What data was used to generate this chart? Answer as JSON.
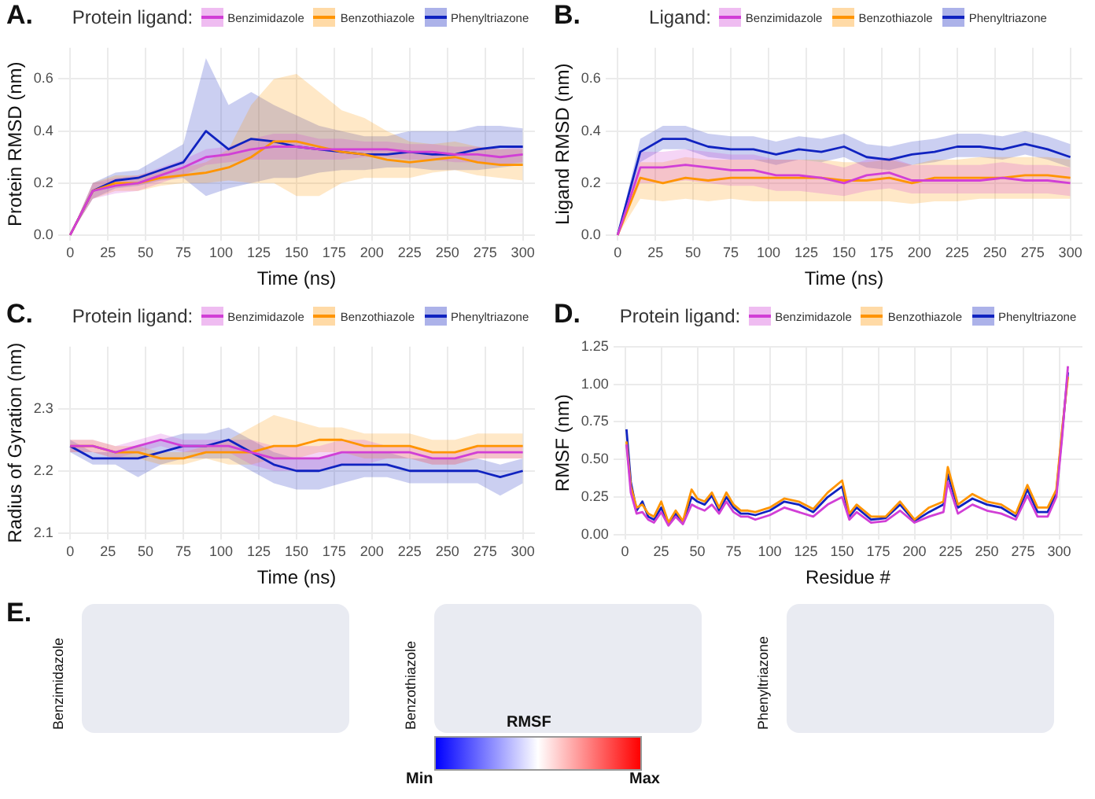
{
  "chart_data": [
    {
      "type": "line",
      "title": "A.",
      "legend_title": "Protein ligand:",
      "legend": "top",
      "xlabel": "Time (ns)",
      "ylabel": "Protein RMSD (nm)",
      "grid": true,
      "marker": "none",
      "line_style": "solid",
      "x": [
        0,
        15,
        30,
        45,
        60,
        75,
        90,
        105,
        120,
        135,
        150,
        165,
        180,
        195,
        210,
        225,
        240,
        255,
        270,
        285,
        300
      ],
      "xlim": [
        -8,
        308
      ],
      "xticks": [
        0,
        25,
        50,
        75,
        100,
        125,
        150,
        175,
        200,
        225,
        250,
        275,
        300
      ],
      "ylim": [
        -0.02,
        0.72
      ],
      "yticks": [
        {
          "value": 0,
          "label": "0.0"
        },
        {
          "value": 0.2,
          "label": "0.2"
        },
        {
          "value": 0.4,
          "label": "0.4"
        },
        {
          "value": 0.6,
          "label": "0.6"
        }
      ],
      "series": [
        {
          "name": "Benzimidazole",
          "color": "#d13fd6",
          "values": [
            0,
            0.17,
            0.19,
            0.2,
            0.23,
            0.26,
            0.3,
            0.31,
            0.33,
            0.34,
            0.34,
            0.33,
            0.33,
            0.33,
            0.33,
            0.32,
            0.32,
            0.31,
            0.31,
            0.3,
            0.31
          ],
          "lower": [
            0,
            0.14,
            0.16,
            0.17,
            0.2,
            0.23,
            0.27,
            0.28,
            0.29,
            0.29,
            0.29,
            0.29,
            0.29,
            0.3,
            0.3,
            0.29,
            0.29,
            0.28,
            0.28,
            0.27,
            0.28
          ],
          "upper": [
            0,
            0.2,
            0.22,
            0.23,
            0.26,
            0.29,
            0.33,
            0.34,
            0.37,
            0.39,
            0.39,
            0.37,
            0.37,
            0.36,
            0.36,
            0.35,
            0.35,
            0.34,
            0.34,
            0.33,
            0.34
          ]
        },
        {
          "name": "Benzothiazole",
          "color": "#ff9400",
          "values": [
            0,
            0.17,
            0.2,
            0.2,
            0.22,
            0.23,
            0.24,
            0.26,
            0.3,
            0.36,
            0.36,
            0.34,
            0.32,
            0.31,
            0.29,
            0.28,
            0.29,
            0.3,
            0.28,
            0.27,
            0.27
          ],
          "lower": [
            0,
            0.14,
            0.17,
            0.17,
            0.19,
            0.2,
            0.2,
            0.21,
            0.2,
            0.2,
            0.15,
            0.15,
            0.2,
            0.22,
            0.22,
            0.22,
            0.24,
            0.25,
            0.23,
            0.22,
            0.21
          ],
          "upper": [
            0,
            0.2,
            0.23,
            0.23,
            0.25,
            0.26,
            0.28,
            0.33,
            0.5,
            0.6,
            0.62,
            0.55,
            0.48,
            0.45,
            0.4,
            0.36,
            0.35,
            0.36,
            0.34,
            0.33,
            0.33
          ]
        },
        {
          "name": "Phenyltriazone",
          "color": "#1023c0",
          "values": [
            0,
            0.17,
            0.21,
            0.22,
            0.25,
            0.28,
            0.4,
            0.33,
            0.37,
            0.36,
            0.34,
            0.33,
            0.32,
            0.31,
            0.31,
            0.32,
            0.31,
            0.31,
            0.33,
            0.34,
            0.34
          ],
          "lower": [
            0,
            0.14,
            0.18,
            0.19,
            0.21,
            0.22,
            0.15,
            0.18,
            0.2,
            0.22,
            0.22,
            0.24,
            0.25,
            0.25,
            0.26,
            0.26,
            0.25,
            0.25,
            0.25,
            0.26,
            0.27
          ],
          "upper": [
            0,
            0.2,
            0.24,
            0.25,
            0.3,
            0.35,
            0.68,
            0.5,
            0.55,
            0.5,
            0.46,
            0.42,
            0.4,
            0.38,
            0.38,
            0.4,
            0.4,
            0.4,
            0.42,
            0.42,
            0.41
          ]
        }
      ]
    },
    {
      "type": "line",
      "title": "B.",
      "legend_title": "Ligand:",
      "legend": "top",
      "xlabel": "Time (ns)",
      "ylabel": "Ligand RMSD (nm)",
      "grid": true,
      "marker": "none",
      "line_style": "solid",
      "x": [
        0,
        15,
        30,
        45,
        60,
        75,
        90,
        105,
        120,
        135,
        150,
        165,
        180,
        195,
        210,
        225,
        240,
        255,
        270,
        285,
        300
      ],
      "xlim": [
        -8,
        308
      ],
      "xticks": [
        0,
        25,
        50,
        75,
        100,
        125,
        150,
        175,
        200,
        225,
        250,
        275,
        300
      ],
      "ylim": [
        -0.02,
        0.72
      ],
      "yticks": [
        {
          "value": 0,
          "label": "0.0"
        },
        {
          "value": 0.2,
          "label": "0.2"
        },
        {
          "value": 0.4,
          "label": "0.4"
        },
        {
          "value": 0.6,
          "label": "0.6"
        }
      ],
      "series": [
        {
          "name": "Benzimidazole",
          "color": "#d13fd6",
          "values": [
            0,
            0.26,
            0.26,
            0.27,
            0.26,
            0.25,
            0.25,
            0.23,
            0.23,
            0.22,
            0.2,
            0.23,
            0.24,
            0.21,
            0.21,
            0.21,
            0.21,
            0.22,
            0.21,
            0.21,
            0.2
          ],
          "lower": [
            0,
            0.2,
            0.2,
            0.21,
            0.2,
            0.19,
            0.19,
            0.17,
            0.17,
            0.16,
            0.15,
            0.17,
            0.18,
            0.16,
            0.16,
            0.16,
            0.16,
            0.16,
            0.16,
            0.16,
            0.15
          ],
          "upper": [
            0,
            0.32,
            0.32,
            0.33,
            0.32,
            0.31,
            0.31,
            0.29,
            0.29,
            0.28,
            0.26,
            0.29,
            0.3,
            0.27,
            0.27,
            0.27,
            0.27,
            0.28,
            0.27,
            0.27,
            0.26
          ]
        },
        {
          "name": "Benzothiazole",
          "color": "#ff9400",
          "values": [
            0,
            0.22,
            0.2,
            0.22,
            0.21,
            0.22,
            0.22,
            0.22,
            0.22,
            0.22,
            0.21,
            0.21,
            0.22,
            0.2,
            0.22,
            0.22,
            0.22,
            0.22,
            0.23,
            0.23,
            0.22
          ],
          "lower": [
            0,
            0.14,
            0.13,
            0.14,
            0.13,
            0.14,
            0.13,
            0.13,
            0.13,
            0.13,
            0.13,
            0.13,
            0.13,
            0.12,
            0.13,
            0.13,
            0.14,
            0.14,
            0.14,
            0.14,
            0.14
          ],
          "upper": [
            0,
            0.28,
            0.28,
            0.3,
            0.29,
            0.29,
            0.29,
            0.29,
            0.29,
            0.29,
            0.28,
            0.28,
            0.29,
            0.27,
            0.29,
            0.29,
            0.3,
            0.3,
            0.3,
            0.3,
            0.29
          ]
        },
        {
          "name": "Phenyltriazone",
          "color": "#1023c0",
          "values": [
            0,
            0.32,
            0.37,
            0.37,
            0.34,
            0.33,
            0.33,
            0.31,
            0.33,
            0.32,
            0.34,
            0.3,
            0.29,
            0.31,
            0.32,
            0.34,
            0.34,
            0.33,
            0.35,
            0.33,
            0.3
          ],
          "lower": [
            0,
            0.28,
            0.33,
            0.33,
            0.3,
            0.29,
            0.29,
            0.27,
            0.29,
            0.28,
            0.3,
            0.26,
            0.25,
            0.27,
            0.28,
            0.3,
            0.3,
            0.29,
            0.31,
            0.29,
            0.26
          ],
          "upper": [
            0,
            0.37,
            0.42,
            0.42,
            0.39,
            0.38,
            0.38,
            0.36,
            0.38,
            0.37,
            0.39,
            0.35,
            0.34,
            0.36,
            0.37,
            0.39,
            0.39,
            0.38,
            0.4,
            0.38,
            0.35
          ]
        }
      ]
    },
    {
      "type": "line",
      "title": "C.",
      "legend_title": "Protein ligand:",
      "legend": "top",
      "xlabel": "Time (ns)",
      "ylabel": "Radius of Gyration (nm)",
      "grid": true,
      "marker": "none",
      "line_style": "solid",
      "x": [
        0,
        15,
        30,
        45,
        60,
        75,
        90,
        105,
        120,
        135,
        150,
        165,
        180,
        195,
        210,
        225,
        240,
        255,
        270,
        285,
        300
      ],
      "xlim": [
        -8,
        308
      ],
      "xticks": [
        0,
        25,
        50,
        75,
        100,
        125,
        150,
        175,
        200,
        225,
        250,
        275,
        300
      ],
      "ylim": [
        2.09,
        2.4
      ],
      "yticks": [
        2.1,
        2.2,
        2.3
      ],
      "series": [
        {
          "name": "Benzimidazole",
          "color": "#d13fd6",
          "values": [
            2.24,
            2.24,
            2.23,
            2.24,
            2.25,
            2.24,
            2.24,
            2.24,
            2.23,
            2.22,
            2.22,
            2.22,
            2.23,
            2.23,
            2.23,
            2.23,
            2.22,
            2.22,
            2.23,
            2.23,
            2.23
          ],
          "lower": [
            2.23,
            2.23,
            2.22,
            2.23,
            2.24,
            2.23,
            2.23,
            2.23,
            2.21,
            2.2,
            2.2,
            2.2,
            2.21,
            2.21,
            2.22,
            2.22,
            2.21,
            2.21,
            2.22,
            2.22,
            2.22
          ],
          "upper": [
            2.25,
            2.25,
            2.24,
            2.25,
            2.26,
            2.25,
            2.25,
            2.25,
            2.25,
            2.24,
            2.24,
            2.24,
            2.25,
            2.25,
            2.24,
            2.24,
            2.23,
            2.23,
            2.24,
            2.24,
            2.24
          ]
        },
        {
          "name": "Benzothiazole",
          "color": "#ff9400",
          "values": [
            2.24,
            2.24,
            2.23,
            2.23,
            2.22,
            2.22,
            2.23,
            2.23,
            2.23,
            2.24,
            2.24,
            2.25,
            2.25,
            2.24,
            2.24,
            2.24,
            2.23,
            2.23,
            2.24,
            2.24,
            2.24
          ],
          "lower": [
            2.23,
            2.23,
            2.22,
            2.22,
            2.21,
            2.21,
            2.22,
            2.21,
            2.21,
            2.22,
            2.22,
            2.23,
            2.23,
            2.22,
            2.22,
            2.22,
            2.21,
            2.21,
            2.22,
            2.22,
            2.22
          ],
          "upper": [
            2.25,
            2.25,
            2.24,
            2.24,
            2.23,
            2.23,
            2.24,
            2.25,
            2.27,
            2.29,
            2.28,
            2.27,
            2.27,
            2.26,
            2.26,
            2.26,
            2.25,
            2.25,
            2.26,
            2.26,
            2.26
          ]
        },
        {
          "name": "Phenyltriazone",
          "color": "#1023c0",
          "values": [
            2.24,
            2.22,
            2.22,
            2.22,
            2.23,
            2.24,
            2.24,
            2.25,
            2.23,
            2.21,
            2.2,
            2.2,
            2.21,
            2.21,
            2.21,
            2.2,
            2.2,
            2.2,
            2.2,
            2.19,
            2.2
          ],
          "lower": [
            2.23,
            2.21,
            2.21,
            2.19,
            2.21,
            2.22,
            2.22,
            2.22,
            2.2,
            2.18,
            2.17,
            2.17,
            2.18,
            2.19,
            2.19,
            2.18,
            2.18,
            2.18,
            2.18,
            2.16,
            2.18
          ],
          "upper": [
            2.25,
            2.23,
            2.23,
            2.24,
            2.25,
            2.26,
            2.26,
            2.27,
            2.25,
            2.23,
            2.22,
            2.22,
            2.23,
            2.23,
            2.23,
            2.22,
            2.22,
            2.22,
            2.22,
            2.21,
            2.22
          ]
        }
      ]
    },
    {
      "type": "line",
      "title": "D.",
      "legend_title": "Protein ligand:",
      "legend": "top",
      "xlabel": "Residue #",
      "ylabel": "RMSF (nm)",
      "grid": true,
      "marker": "none",
      "line_style": "solid",
      "x": [
        1,
        4,
        8,
        12,
        16,
        20,
        25,
        30,
        35,
        40,
        46,
        50,
        55,
        60,
        65,
        70,
        75,
        80,
        85,
        90,
        100,
        110,
        120,
        130,
        140,
        150,
        155,
        160,
        170,
        180,
        190,
        200,
        210,
        220,
        223,
        230,
        240,
        250,
        260,
        270,
        278,
        285,
        292,
        298,
        302,
        306
      ],
      "xlim": [
        -8,
        316
      ],
      "xticks": [
        0,
        25,
        50,
        75,
        100,
        125,
        150,
        175,
        200,
        225,
        250,
        275,
        300
      ],
      "ylim": [
        -0.03,
        1.25
      ],
      "yticks": [
        {
          "value": 0,
          "label": "0.00"
        },
        {
          "value": 0.25,
          "label": "0.25"
        },
        {
          "value": 0.5,
          "label": "0.50"
        },
        {
          "value": 0.75,
          "label": "0.75"
        },
        {
          "value": 1,
          "label": "1.00"
        },
        {
          "value": 1.25,
          "label": "1.25"
        }
      ],
      "series": [
        {
          "name": "Benzimidazole",
          "color": "#d13fd6",
          "values": [
            0.6,
            0.28,
            0.14,
            0.15,
            0.1,
            0.08,
            0.15,
            0.06,
            0.12,
            0.07,
            0.2,
            0.18,
            0.16,
            0.2,
            0.14,
            0.22,
            0.15,
            0.12,
            0.12,
            0.1,
            0.13,
            0.18,
            0.15,
            0.12,
            0.2,
            0.25,
            0.1,
            0.15,
            0.08,
            0.09,
            0.16,
            0.08,
            0.12,
            0.15,
            0.35,
            0.14,
            0.2,
            0.16,
            0.14,
            0.1,
            0.26,
            0.12,
            0.12,
            0.25,
            0.65,
            1.12
          ]
        },
        {
          "name": "Benzothiazole",
          "color": "#ff9400",
          "values": [
            0.62,
            0.32,
            0.18,
            0.2,
            0.14,
            0.12,
            0.22,
            0.08,
            0.16,
            0.09,
            0.3,
            0.24,
            0.22,
            0.28,
            0.18,
            0.28,
            0.2,
            0.16,
            0.16,
            0.15,
            0.18,
            0.24,
            0.22,
            0.17,
            0.28,
            0.36,
            0.14,
            0.2,
            0.12,
            0.12,
            0.22,
            0.1,
            0.18,
            0.22,
            0.45,
            0.2,
            0.27,
            0.22,
            0.2,
            0.14,
            0.33,
            0.18,
            0.18,
            0.3,
            0.7,
            1.05
          ]
        },
        {
          "name": "Phenyltriazone",
          "color": "#1023c0",
          "values": [
            0.7,
            0.35,
            0.16,
            0.22,
            0.12,
            0.1,
            0.18,
            0.07,
            0.14,
            0.08,
            0.25,
            0.22,
            0.2,
            0.26,
            0.16,
            0.25,
            0.18,
            0.14,
            0.14,
            0.13,
            0.16,
            0.22,
            0.2,
            0.15,
            0.25,
            0.32,
            0.12,
            0.18,
            0.1,
            0.11,
            0.2,
            0.09,
            0.15,
            0.2,
            0.4,
            0.18,
            0.24,
            0.2,
            0.18,
            0.12,
            0.3,
            0.15,
            0.15,
            0.28,
            0.68,
            1.08
          ]
        }
      ]
    },
    {
      "type": "other",
      "title": "E.",
      "annotations": [
        "Benzimidazole",
        "Benzothiazole",
        "Phenyltriazone",
        "RMSF",
        "Min",
        "Max"
      ]
    }
  ]
}
